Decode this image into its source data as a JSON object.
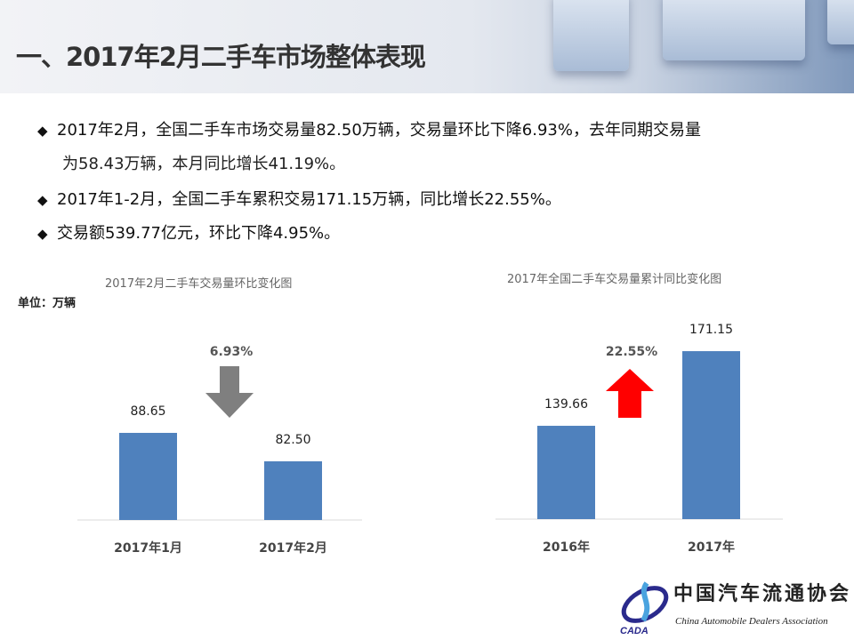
{
  "header": {
    "title": "一、2017年2月二手车市场整体表现"
  },
  "bullets": [
    {
      "lines": [
        "2017年2月，全国二手车市场交易量82.50万辆，交易量环比下降6.93%，去年同期交易量",
        "为58.43万辆，本月同比增长41.19%。"
      ]
    },
    {
      "lines": [
        "2017年1-2月，全国二手车累积交易171.15万辆，同比增长22.55%。"
      ]
    },
    {
      "lines": [
        "交易额539.77亿元，环比下降4.95%。"
      ]
    }
  ],
  "chart_data": [
    {
      "type": "bar",
      "title": "2017年2月二手车交易量环比变化图",
      "unit_label": "单位：万辆",
      "categories": [
        "2017年1月",
        "2017年2月"
      ],
      "values": [
        88.65,
        82.5
      ],
      "data_labels": [
        "88.65",
        "82.50"
      ],
      "bar_color": "#4f81bd",
      "annotation": {
        "text": "6.93%",
        "arrow": "down",
        "color": "#7f7f7f"
      }
    },
    {
      "type": "bar",
      "title": "2017年全国二手车交易量累计同比变化图",
      "categories": [
        "2016年",
        "2017年"
      ],
      "values": [
        139.66,
        171.15
      ],
      "data_labels": [
        "139.66",
        "171.15"
      ],
      "bar_color": "#4f81bd",
      "annotation": {
        "text": "22.55%",
        "arrow": "up",
        "color": "#ff0000"
      }
    }
  ],
  "logo": {
    "cn": "中国汽车流通协会",
    "en": "China Automobile Dealers Association",
    "abbr": "CADA"
  }
}
